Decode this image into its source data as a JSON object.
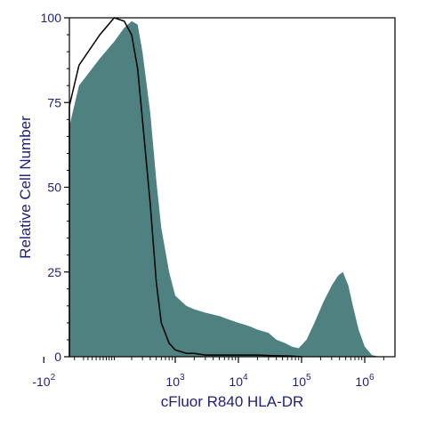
{
  "chart_data": {
    "type": "area",
    "xlabel": "cFluor R840 HLA-DR",
    "ylabel": "Relative Cell Number",
    "ylim": [
      0,
      100
    ],
    "x_scale": "biexponential",
    "y_ticks": [
      "0",
      "25",
      "50",
      "75",
      "100"
    ],
    "x_ticks": [
      {
        "base": "-10",
        "exp": "2",
        "value": -100
      },
      {
        "base": "10",
        "exp": "3",
        "value": 1000
      },
      {
        "base": "10",
        "exp": "4",
        "value": 10000
      },
      {
        "base": "10",
        "exp": "5",
        "value": 100000
      },
      {
        "base": "10",
        "exp": "6",
        "value": 1000000
      }
    ],
    "grid": false,
    "legend": "none",
    "colors": {
      "filled_series": "#4e8180",
      "outline_series": "#000000",
      "axis_text": "#1f1f7a"
    },
    "series": [
      {
        "style": "filled",
        "x": [
          -600,
          -400,
          -300,
          -250,
          -200,
          -150,
          -100,
          -50,
          0,
          50,
          100,
          150,
          200,
          250,
          300,
          400,
          500,
          600,
          800,
          1000,
          1500,
          2000,
          3000,
          5000,
          7000,
          10000,
          15000,
          20000,
          30000,
          40000,
          55000,
          70000,
          90000,
          120000,
          160000,
          220000,
          300000,
          380000,
          450000,
          550000,
          650000,
          800000,
          1000000,
          1300000,
          1700000,
          2000000
        ],
        "y": [
          0,
          0.5,
          3,
          8,
          18,
          32,
          50,
          68,
          80,
          88,
          93,
          97,
          99,
          98,
          90,
          72,
          52,
          38,
          25,
          18,
          15,
          14,
          13,
          12,
          11,
          10,
          9,
          8,
          7,
          5,
          4,
          3,
          2.5,
          5,
          10,
          16,
          21,
          24,
          25,
          21,
          15,
          8,
          3,
          0.5,
          0,
          0
        ]
      },
      {
        "style": "outline",
        "x": [
          -600,
          -400,
          -300,
          -250,
          -200,
          -150,
          -100,
          -50,
          0,
          50,
          100,
          150,
          200,
          250,
          300,
          400,
          500,
          600,
          800,
          1000,
          1500,
          2000,
          3000,
          5000,
          10000,
          20000,
          40000,
          70000,
          100000
        ],
        "y": [
          0,
          1,
          5,
          12,
          25,
          42,
          60,
          74,
          86,
          95,
          100,
          99,
          95,
          85,
          70,
          45,
          22,
          10,
          4,
          2,
          1,
          1,
          0.5,
          0.5,
          0.5,
          0.5,
          0.3,
          0.2,
          0
        ]
      }
    ]
  }
}
